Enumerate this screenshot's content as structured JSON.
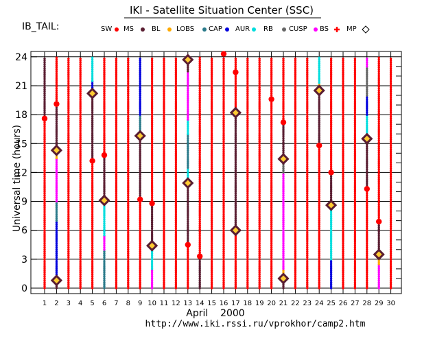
{
  "page": {
    "title": "IKI - Satellite Situation Center (SSC)",
    "satellite_label": "IB_TAIL:",
    "url": "http://www.iki.rssi.ru/vprokhor/camp2.htm"
  },
  "chart_data": {
    "type": "scatter",
    "xlabel": "April    2000",
    "ylabel": "Universal time (hours)",
    "xlim": [
      1,
      30
    ],
    "ylim": [
      0,
      24
    ],
    "xticks": [
      1,
      2,
      3,
      4,
      5,
      6,
      7,
      8,
      9,
      10,
      11,
      12,
      13,
      14,
      15,
      16,
      17,
      18,
      19,
      20,
      21,
      22,
      23,
      24,
      25,
      26,
      27,
      28,
      29,
      30
    ],
    "yticks": [
      0,
      3,
      6,
      9,
      12,
      15,
      18,
      21,
      24
    ],
    "grid": true,
    "legend_position": "top",
    "legend": [
      {
        "key": "SW",
        "label": "SW",
        "marker": "dot",
        "color": "#ff0000"
      },
      {
        "key": "MS",
        "label": "MS",
        "marker": "dot",
        "color": "#5a1e32"
      },
      {
        "key": "BL",
        "label": "BL",
        "marker": "dot",
        "color": "#ffaa00"
      },
      {
        "key": "LOBS",
        "label": "LOBS",
        "marker": "dot",
        "color": "#2a7a8a"
      },
      {
        "key": "CAP",
        "label": "CAP",
        "marker": "dot",
        "color": "#0000dd"
      },
      {
        "key": "AUR",
        "label": "AUR",
        "marker": "dot",
        "color": "#00dddd"
      },
      {
        "key": "RB",
        "label": "RB",
        "marker": "dot",
        "color": "#666666"
      },
      {
        "key": "CUSP",
        "label": "CUSP",
        "marker": "dot",
        "color": "#ff00ff"
      },
      {
        "key": "BS",
        "label": "BS",
        "marker": "cross",
        "color": "#ff0000"
      },
      {
        "key": "MP",
        "label": "MP",
        "marker": "diamond",
        "color": "#5a1e32"
      }
    ],
    "daily_orbit": [
      {
        "day": 1,
        "segments": [
          {
            "region": "SW",
            "from": 0,
            "to": 17.6
          },
          {
            "region": "MS",
            "from": 17.6,
            "to": 24
          }
        ]
      },
      {
        "day": 2,
        "segments": [
          {
            "region": "MS",
            "from": 0,
            "to": 0.8
          },
          {
            "region": "CAP",
            "from": 0.8,
            "to": 7
          },
          {
            "region": "LOBS",
            "from": 7,
            "to": 9
          },
          {
            "region": "CUSP",
            "from": 9,
            "to": 13.5
          },
          {
            "region": "BL",
            "from": 13.5,
            "to": 14.3
          },
          {
            "region": "MS",
            "from": 14.3,
            "to": 19.1
          },
          {
            "region": "SW",
            "from": 19.1,
            "to": 24
          }
        ]
      },
      {
        "day": 3,
        "segments": [
          {
            "region": "SW",
            "from": 0,
            "to": 24
          }
        ]
      },
      {
        "day": 4,
        "segments": [
          {
            "region": "SW",
            "from": 0,
            "to": 24
          }
        ]
      },
      {
        "day": 5,
        "segments": [
          {
            "region": "SW",
            "from": 0,
            "to": 13.2
          },
          {
            "region": "MS",
            "from": 13.2,
            "to": 20.2
          },
          {
            "region": "CAP",
            "from": 20.2,
            "to": 21.5
          },
          {
            "region": "AUR",
            "from": 21.5,
            "to": 24
          }
        ]
      },
      {
        "day": 6,
        "segments": [
          {
            "region": "LOBS",
            "from": 0,
            "to": 4
          },
          {
            "region": "CUSP",
            "from": 4,
            "to": 5.5
          },
          {
            "region": "AUR",
            "from": 5.5,
            "to": 8.8
          },
          {
            "region": "MS",
            "from": 8.8,
            "to": 13.8
          },
          {
            "region": "SW",
            "from": 13.8,
            "to": 24
          }
        ]
      },
      {
        "day": 7,
        "segments": [
          {
            "region": "SW",
            "from": 0,
            "to": 24
          }
        ]
      },
      {
        "day": 8,
        "segments": [
          {
            "region": "SW",
            "from": 0,
            "to": 24
          }
        ]
      },
      {
        "day": 9,
        "segments": [
          {
            "region": "SW",
            "from": 0,
            "to": 9.2
          },
          {
            "region": "MS",
            "from": 9.2,
            "to": 15.8
          },
          {
            "region": "LOBS",
            "from": 15.8,
            "to": 18
          },
          {
            "region": "CAP",
            "from": 18,
            "to": 24
          }
        ]
      },
      {
        "day": 10,
        "segments": [
          {
            "region": "CUSP",
            "from": 0,
            "to": 2
          },
          {
            "region": "AUR",
            "from": 2,
            "to": 4.4
          },
          {
            "region": "MS",
            "from": 4.4,
            "to": 8.8
          },
          {
            "region": "SW",
            "from": 8.8,
            "to": 24
          }
        ]
      },
      {
        "day": 11,
        "segments": [
          {
            "region": "SW",
            "from": 0,
            "to": 24
          }
        ]
      },
      {
        "day": 12,
        "segments": [
          {
            "region": "SW",
            "from": 0,
            "to": 24
          }
        ]
      },
      {
        "day": 13,
        "segments": [
          {
            "region": "SW",
            "from": 0,
            "to": 4.5
          },
          {
            "region": "MS",
            "from": 4.5,
            "to": 10.9
          },
          {
            "region": "AUR",
            "from": 10.9,
            "to": 12.5
          },
          {
            "region": "LOBS",
            "from": 12.5,
            "to": 16
          },
          {
            "region": "AUR",
            "from": 16,
            "to": 17.5
          },
          {
            "region": "CUSP",
            "from": 17.5,
            "to": 22.5
          },
          {
            "region": "MS",
            "from": 22.5,
            "to": 24
          }
        ]
      },
      {
        "day": 14,
        "segments": [
          {
            "region": "MS",
            "from": 0,
            "to": 3.3
          },
          {
            "region": "SW",
            "from": 3.3,
            "to": 24
          }
        ]
      },
      {
        "day": 15,
        "segments": [
          {
            "region": "SW",
            "from": 0,
            "to": 24
          }
        ]
      },
      {
        "day": 16,
        "segments": [
          {
            "region": "SW",
            "from": 0,
            "to": 24
          }
        ]
      },
      {
        "day": 17,
        "segments": [
          {
            "region": "SW",
            "from": 0,
            "to": 6
          },
          {
            "region": "MS",
            "from": 6,
            "to": 18.2
          },
          {
            "region": "SW",
            "from": 18.2,
            "to": 24
          }
        ]
      },
      {
        "day": 18,
        "segments": [
          {
            "region": "SW",
            "from": 0,
            "to": 24
          }
        ]
      },
      {
        "day": 19,
        "segments": [
          {
            "region": "SW",
            "from": 0,
            "to": 24
          }
        ]
      },
      {
        "day": 20,
        "segments": [
          {
            "region": "SW",
            "from": 0,
            "to": 24
          }
        ]
      },
      {
        "day": 21,
        "segments": [
          {
            "region": "MS",
            "from": 0,
            "to": 1
          },
          {
            "region": "BL",
            "from": 1,
            "to": 2
          },
          {
            "region": "CUSP",
            "from": 2,
            "to": 12
          },
          {
            "region": "RB",
            "from": 12,
            "to": 13.3
          },
          {
            "region": "MS",
            "from": 13.3,
            "to": 17.2
          },
          {
            "region": "SW",
            "from": 17.2,
            "to": 24
          }
        ]
      },
      {
        "day": 22,
        "segments": [
          {
            "region": "SW",
            "from": 0,
            "to": 24
          }
        ]
      },
      {
        "day": 23,
        "segments": [
          {
            "region": "SW",
            "from": 0,
            "to": 24
          }
        ]
      },
      {
        "day": 24,
        "segments": [
          {
            "region": "SW",
            "from": 0,
            "to": 14.8
          },
          {
            "region": "MS",
            "from": 14.8,
            "to": 20.5
          },
          {
            "region": "BL",
            "from": 20.5,
            "to": 21.3
          },
          {
            "region": "AUR",
            "from": 21.3,
            "to": 24
          }
        ]
      },
      {
        "day": 25,
        "segments": [
          {
            "region": "CAP",
            "from": 0,
            "to": 3
          },
          {
            "region": "AUR",
            "from": 3,
            "to": 8.6
          },
          {
            "region": "MS",
            "from": 8.6,
            "to": 12
          },
          {
            "region": "SW",
            "from": 12,
            "to": 24
          }
        ]
      },
      {
        "day": 26,
        "segments": [
          {
            "region": "SW",
            "from": 0,
            "to": 24
          }
        ]
      },
      {
        "day": 27,
        "segments": [
          {
            "region": "SW",
            "from": 0,
            "to": 24
          }
        ]
      },
      {
        "day": 28,
        "segments": [
          {
            "region": "SW",
            "from": 0,
            "to": 10.3
          },
          {
            "region": "MS",
            "from": 10.3,
            "to": 15.5
          },
          {
            "region": "AUR",
            "from": 15.5,
            "to": 18
          },
          {
            "region": "CAP",
            "from": 18,
            "to": 20
          },
          {
            "region": "RB",
            "from": 20,
            "to": 23
          },
          {
            "region": "CUSP",
            "from": 23,
            "to": 24
          }
        ]
      },
      {
        "day": 29,
        "segments": [
          {
            "region": "CUSP",
            "from": 0,
            "to": 2.5
          },
          {
            "region": "BL",
            "from": 2.5,
            "to": 3.3
          },
          {
            "region": "MS",
            "from": 3.3,
            "to": 6.9
          },
          {
            "region": "SW",
            "from": 6.9,
            "to": 24
          }
        ]
      },
      {
        "day": 30,
        "segments": [
          {
            "region": "SW",
            "from": 0,
            "to": 24
          }
        ]
      }
    ],
    "bow_shock_crossings": [
      {
        "day": 1,
        "hour": 17.6
      },
      {
        "day": 2,
        "hour": 19.1
      },
      {
        "day": 5,
        "hour": 13.2
      },
      {
        "day": 6,
        "hour": 13.8
      },
      {
        "day": 9,
        "hour": 9.2
      },
      {
        "day": 10,
        "hour": 8.8
      },
      {
        "day": 13,
        "hour": 4.5
      },
      {
        "day": 14,
        "hour": 3.3
      },
      {
        "day": 16,
        "hour": 24.3
      },
      {
        "day": 17,
        "hour": 22.4
      },
      {
        "day": 20,
        "hour": 19.6
      },
      {
        "day": 21,
        "hour": 17.2
      },
      {
        "day": 24,
        "hour": 14.8
      },
      {
        "day": 25,
        "hour": 12
      },
      {
        "day": 28,
        "hour": 10.3
      },
      {
        "day": 29,
        "hour": 6.9
      }
    ],
    "magnetopause_crossings": [
      {
        "day": 2,
        "hour": 0.8
      },
      {
        "day": 2,
        "hour": 14.3
      },
      {
        "day": 5,
        "hour": 20.2
      },
      {
        "day": 6,
        "hour": 9.1
      },
      {
        "day": 9,
        "hour": 15.8
      },
      {
        "day": 10,
        "hour": 4.4
      },
      {
        "day": 13,
        "hour": 10.9
      },
      {
        "day": 13,
        "hour": 23.7
      },
      {
        "day": 17,
        "hour": 6
      },
      {
        "day": 17,
        "hour": 18.2
      },
      {
        "day": 21,
        "hour": 1
      },
      {
        "day": 21,
        "hour": 13.4
      },
      {
        "day": 24,
        "hour": 20.5
      },
      {
        "day": 25,
        "hour": 8.6
      },
      {
        "day": 28,
        "hour": 15.5
      },
      {
        "day": 29,
        "hour": 3.5
      }
    ]
  }
}
